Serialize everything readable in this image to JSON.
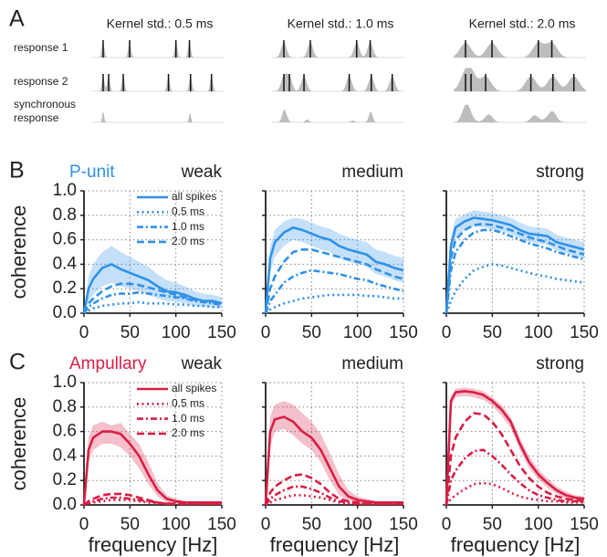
{
  "chart_data": [
    {
      "type": "raster",
      "panel_label": "A",
      "row_labels": [
        "response 1",
        "response 2",
        [
          "synchronous",
          "response"
        ]
      ],
      "xlim": [
        0,
        48
      ],
      "responses": [
        [
          4.3,
          13.9,
          30.7,
          35.6
        ],
        [
          4.3,
          6.3,
          11.6,
          28,
          36,
          43.6
        ]
      ],
      "columns": [
        {
          "title": "Kernel std.: 0.5 ms",
          "kernel_std": 0.5
        },
        {
          "title": "Kernel std.: 1.0 ms",
          "kernel_std": 1.0
        },
        {
          "title": "Kernel std.: 2.0 ms",
          "kernel_std": 2.0
        }
      ]
    },
    {
      "type": "line",
      "panel_label": "B",
      "row_title": "P-unit",
      "row_title_color": "#2f91e8",
      "title": "weak",
      "ylabel": "coherence",
      "ytick_labels": true,
      "legend": "upper right",
      "grid": true,
      "xlim": [
        0,
        150
      ],
      "ylim": [
        0,
        1
      ],
      "xticks": [
        0,
        50,
        100,
        150
      ],
      "yticks": [
        {
          "value": 0,
          "label": "0.0"
        },
        0.2,
        0.4,
        0.6,
        0.8,
        {
          "value": 1,
          "label": "1.0"
        }
      ],
      "x": [
        0,
        5,
        10,
        20,
        30,
        40,
        50,
        60,
        70,
        80,
        90,
        100,
        110,
        120,
        130,
        140,
        150
      ],
      "series": [
        {
          "name": "all spikes",
          "color": "#2f91e8",
          "dash": "solid",
          "values": [
            0,
            0.2,
            0.28,
            0.37,
            0.4,
            0.36,
            0.33,
            0.3,
            0.27,
            0.22,
            0.18,
            0.17,
            0.15,
            0.12,
            0.1,
            0.1,
            0.08
          ],
          "lower": [
            0,
            0.1,
            0.15,
            0.22,
            0.25,
            0.22,
            0.2,
            0.18,
            0.15,
            0.12,
            0.1,
            0.09,
            0.08,
            0.06,
            0.05,
            0.05,
            0.04
          ],
          "upper": [
            0,
            0.3,
            0.4,
            0.5,
            0.55,
            0.5,
            0.46,
            0.42,
            0.38,
            0.32,
            0.27,
            0.25,
            0.22,
            0.18,
            0.16,
            0.15,
            0.13
          ]
        },
        {
          "name": "0.5 ms",
          "color": "#2f91e8",
          "dash": "dotted",
          "values": [
            0,
            0.02,
            0.04,
            0.06,
            0.07,
            0.08,
            0.08,
            0.09,
            0.08,
            0.08,
            0.08,
            0.07,
            0.07,
            0.06,
            0.06,
            0.05,
            0.05
          ]
        },
        {
          "name": "1.0 ms",
          "color": "#2f91e8",
          "dash": "dashdot",
          "values": [
            0,
            0.05,
            0.08,
            0.12,
            0.15,
            0.16,
            0.16,
            0.17,
            0.16,
            0.15,
            0.14,
            0.13,
            0.12,
            0.1,
            0.09,
            0.08,
            0.07
          ]
        },
        {
          "name": "2.0 ms",
          "color": "#2f91e8",
          "dash": "dashed",
          "values": [
            0,
            0.08,
            0.12,
            0.18,
            0.22,
            0.24,
            0.24,
            0.23,
            0.21,
            0.19,
            0.17,
            0.15,
            0.13,
            0.11,
            0.1,
            0.09,
            0.08
          ]
        }
      ]
    },
    {
      "type": "line",
      "title": "medium",
      "ytick_labels": false,
      "grid": true,
      "xlim": [
        0,
        150
      ],
      "ylim": [
        0,
        1
      ],
      "xticks": [
        0,
        50,
        100,
        150
      ],
      "yticks": [
        0,
        0.2,
        0.4,
        0.6,
        0.8,
        1
      ],
      "x": [
        0,
        5,
        10,
        20,
        30,
        40,
        50,
        60,
        70,
        80,
        90,
        100,
        110,
        120,
        130,
        140,
        150
      ],
      "series": [
        {
          "color": "#2f91e8",
          "dash": "solid",
          "values": [
            0,
            0.45,
            0.58,
            0.66,
            0.7,
            0.68,
            0.65,
            0.62,
            0.6,
            0.55,
            0.52,
            0.5,
            0.48,
            0.42,
            0.4,
            0.37,
            0.35
          ],
          "lower": [
            0,
            0.33,
            0.46,
            0.55,
            0.6,
            0.58,
            0.55,
            0.52,
            0.5,
            0.45,
            0.42,
            0.4,
            0.38,
            0.32,
            0.3,
            0.27,
            0.25
          ],
          "upper": [
            0,
            0.55,
            0.68,
            0.75,
            0.78,
            0.77,
            0.74,
            0.71,
            0.69,
            0.65,
            0.62,
            0.6,
            0.58,
            0.52,
            0.5,
            0.47,
            0.45
          ]
        },
        {
          "color": "#2f91e8",
          "dash": "dotted",
          "values": [
            0,
            0.03,
            0.05,
            0.08,
            0.1,
            0.12,
            0.13,
            0.14,
            0.15,
            0.15,
            0.15,
            0.15,
            0.14,
            0.14,
            0.13,
            0.12,
            0.12
          ]
        },
        {
          "color": "#2f91e8",
          "dash": "dashdot",
          "values": [
            0,
            0.1,
            0.15,
            0.25,
            0.3,
            0.33,
            0.35,
            0.34,
            0.33,
            0.32,
            0.3,
            0.28,
            0.27,
            0.24,
            0.22,
            0.2,
            0.18
          ]
        },
        {
          "color": "#2f91e8",
          "dash": "dashed",
          "values": [
            0,
            0.2,
            0.3,
            0.42,
            0.5,
            0.52,
            0.52,
            0.5,
            0.48,
            0.46,
            0.44,
            0.42,
            0.4,
            0.36,
            0.33,
            0.3,
            0.28
          ]
        }
      ]
    },
    {
      "type": "line",
      "title": "strong",
      "ytick_labels": false,
      "grid": true,
      "xlim": [
        0,
        150
      ],
      "ylim": [
        0,
        1
      ],
      "xticks": [
        0,
        50,
        100,
        150
      ],
      "yticks": [
        0,
        0.2,
        0.4,
        0.6,
        0.8,
        1
      ],
      "x": [
        0,
        5,
        10,
        20,
        30,
        40,
        50,
        60,
        70,
        80,
        90,
        100,
        110,
        120,
        130,
        140,
        150
      ],
      "series": [
        {
          "color": "#2f91e8",
          "dash": "solid",
          "values": [
            0,
            0.55,
            0.7,
            0.75,
            0.78,
            0.77,
            0.76,
            0.74,
            0.72,
            0.68,
            0.65,
            0.64,
            0.63,
            0.58,
            0.56,
            0.54,
            0.52
          ],
          "lower": [
            0,
            0.45,
            0.62,
            0.68,
            0.71,
            0.7,
            0.69,
            0.67,
            0.65,
            0.61,
            0.58,
            0.57,
            0.56,
            0.51,
            0.49,
            0.47,
            0.45
          ],
          "upper": [
            0,
            0.62,
            0.77,
            0.81,
            0.84,
            0.83,
            0.82,
            0.8,
            0.78,
            0.74,
            0.71,
            0.7,
            0.69,
            0.64,
            0.62,
            0.6,
            0.58
          ]
        },
        {
          "color": "#2f91e8",
          "dash": "dotted",
          "values": [
            0,
            0.1,
            0.18,
            0.28,
            0.35,
            0.38,
            0.4,
            0.39,
            0.37,
            0.35,
            0.33,
            0.31,
            0.3,
            0.28,
            0.27,
            0.26,
            0.25
          ]
        },
        {
          "color": "#2f91e8",
          "dash": "dashdot",
          "values": [
            0,
            0.35,
            0.5,
            0.6,
            0.66,
            0.68,
            0.68,
            0.66,
            0.63,
            0.6,
            0.57,
            0.55,
            0.53,
            0.5,
            0.48,
            0.46,
            0.44
          ]
        },
        {
          "color": "#2f91e8",
          "dash": "dashed",
          "values": [
            0,
            0.45,
            0.6,
            0.68,
            0.72,
            0.73,
            0.72,
            0.7,
            0.68,
            0.65,
            0.62,
            0.6,
            0.58,
            0.55,
            0.52,
            0.5,
            0.48
          ]
        }
      ]
    },
    {
      "type": "line",
      "panel_label": "C",
      "row_title": "Ampullary",
      "row_title_color": "#d81e45",
      "title": "weak",
      "ylabel": "coherence",
      "xlabel": "frequency [Hz]",
      "ytick_labels": true,
      "legend": "upper right",
      "grid": true,
      "xlim": [
        0,
        150
      ],
      "ylim": [
        0,
        1
      ],
      "xticks": [
        0,
        50,
        100,
        150
      ],
      "yticks": [
        {
          "value": 0,
          "label": "0.0"
        },
        0.2,
        0.4,
        0.6,
        0.8,
        {
          "value": 1,
          "label": "1.0"
        }
      ],
      "x": [
        0,
        5,
        10,
        20,
        30,
        40,
        50,
        60,
        70,
        80,
        90,
        100,
        110,
        120,
        130,
        140,
        150
      ],
      "series": [
        {
          "name": "all spikes",
          "color": "#d81e45",
          "dash": "solid",
          "values": [
            0,
            0.45,
            0.55,
            0.6,
            0.6,
            0.58,
            0.5,
            0.4,
            0.25,
            0.12,
            0.05,
            0.03,
            0.02,
            0.02,
            0.02,
            0.02,
            0.02
          ],
          "lower": [
            0,
            0.35,
            0.45,
            0.5,
            0.5,
            0.47,
            0.4,
            0.3,
            0.17,
            0.07,
            0.02,
            0.01,
            0.01,
            0.01,
            0.01,
            0.01,
            0.01
          ],
          "upper": [
            0,
            0.55,
            0.65,
            0.68,
            0.65,
            0.67,
            0.58,
            0.5,
            0.35,
            0.18,
            0.08,
            0.05,
            0.03,
            0.03,
            0.03,
            0.03,
            0.03
          ]
        },
        {
          "name": "0.5 ms",
          "color": "#d81e45",
          "dash": "dotted",
          "values": [
            0,
            0.01,
            0.02,
            0.03,
            0.04,
            0.04,
            0.04,
            0.03,
            0.02,
            0.01,
            0.01,
            0.01,
            0.01,
            0.01,
            0.01,
            0.01,
            0.01
          ]
        },
        {
          "name": "1.0 ms",
          "color": "#d81e45",
          "dash": "dashdot",
          "values": [
            0,
            0.02,
            0.03,
            0.05,
            0.06,
            0.06,
            0.05,
            0.04,
            0.03,
            0.02,
            0.01,
            0.01,
            0.01,
            0.01,
            0.01,
            0.01,
            0.01
          ]
        },
        {
          "name": "2.0 ms",
          "color": "#d81e45",
          "dash": "dashed",
          "values": [
            0,
            0.03,
            0.05,
            0.08,
            0.09,
            0.09,
            0.08,
            0.06,
            0.04,
            0.02,
            0.01,
            0.01,
            0.01,
            0.01,
            0.01,
            0.01,
            0.01
          ]
        }
      ]
    },
    {
      "type": "line",
      "title": "medium",
      "xlabel": "frequency [Hz]",
      "ytick_labels": false,
      "grid": true,
      "xlim": [
        0,
        150
      ],
      "ylim": [
        0,
        1
      ],
      "xticks": [
        0,
        50,
        100,
        150
      ],
      "yticks": [
        0,
        0.2,
        0.4,
        0.6,
        0.8,
        1
      ],
      "x": [
        0,
        5,
        10,
        20,
        30,
        40,
        50,
        60,
        70,
        80,
        90,
        100,
        110,
        120,
        130,
        140,
        150
      ],
      "series": [
        {
          "color": "#d81e45",
          "dash": "solid",
          "values": [
            0,
            0.6,
            0.7,
            0.72,
            0.68,
            0.6,
            0.55,
            0.45,
            0.3,
            0.15,
            0.07,
            0.04,
            0.03,
            0.02,
            0.02,
            0.02,
            0.02
          ],
          "lower": [
            0,
            0.48,
            0.6,
            0.62,
            0.57,
            0.5,
            0.45,
            0.35,
            0.2,
            0.08,
            0.03,
            0.02,
            0.01,
            0.01,
            0.01,
            0.01,
            0.01
          ],
          "upper": [
            0,
            0.72,
            0.82,
            0.85,
            0.82,
            0.75,
            0.68,
            0.58,
            0.42,
            0.25,
            0.12,
            0.07,
            0.05,
            0.03,
            0.03,
            0.03,
            0.03
          ]
        },
        {
          "color": "#d81e45",
          "dash": "dotted",
          "values": [
            0,
            0.02,
            0.04,
            0.06,
            0.08,
            0.08,
            0.07,
            0.06,
            0.04,
            0.02,
            0.01,
            0.01,
            0.01,
            0.01,
            0.01,
            0.01,
            0.01
          ]
        },
        {
          "color": "#d81e45",
          "dash": "dashdot",
          "values": [
            0,
            0.05,
            0.08,
            0.12,
            0.15,
            0.15,
            0.13,
            0.1,
            0.06,
            0.03,
            0.02,
            0.01,
            0.01,
            0.01,
            0.01,
            0.01,
            0.01
          ]
        },
        {
          "color": "#d81e45",
          "dash": "dashed",
          "values": [
            0,
            0.1,
            0.15,
            0.2,
            0.24,
            0.25,
            0.22,
            0.17,
            0.1,
            0.05,
            0.03,
            0.02,
            0.01,
            0.01,
            0.01,
            0.01,
            0.01
          ]
        }
      ]
    },
    {
      "type": "line",
      "title": "strong",
      "xlabel": "frequency [Hz]",
      "ytick_labels": false,
      "grid": true,
      "xlim": [
        0,
        150
      ],
      "ylim": [
        0,
        1
      ],
      "xticks": [
        0,
        50,
        100,
        150
      ],
      "yticks": [
        0,
        0.2,
        0.4,
        0.6,
        0.8,
        1
      ],
      "x": [
        0,
        5,
        10,
        20,
        30,
        40,
        50,
        60,
        70,
        80,
        90,
        100,
        110,
        120,
        130,
        140,
        150
      ],
      "series": [
        {
          "color": "#d81e45",
          "dash": "solid",
          "values": [
            0,
            0.85,
            0.92,
            0.93,
            0.92,
            0.9,
            0.85,
            0.78,
            0.68,
            0.5,
            0.35,
            0.25,
            0.18,
            0.12,
            0.08,
            0.06,
            0.05
          ],
          "lower": [
            0,
            0.8,
            0.88,
            0.89,
            0.88,
            0.86,
            0.81,
            0.73,
            0.63,
            0.45,
            0.3,
            0.21,
            0.14,
            0.09,
            0.05,
            0.04,
            0.03
          ],
          "upper": [
            0,
            0.89,
            0.95,
            0.96,
            0.95,
            0.93,
            0.88,
            0.82,
            0.72,
            0.55,
            0.4,
            0.29,
            0.22,
            0.15,
            0.11,
            0.08,
            0.07
          ]
        },
        {
          "color": "#d81e45",
          "dash": "dotted",
          "values": [
            0,
            0.05,
            0.08,
            0.13,
            0.17,
            0.18,
            0.17,
            0.14,
            0.1,
            0.07,
            0.05,
            0.04,
            0.03,
            0.03,
            0.02,
            0.02,
            0.02
          ]
        },
        {
          "color": "#d81e45",
          "dash": "dashdot",
          "values": [
            0,
            0.2,
            0.28,
            0.38,
            0.44,
            0.45,
            0.4,
            0.33,
            0.25,
            0.18,
            0.12,
            0.08,
            0.06,
            0.04,
            0.03,
            0.03,
            0.02
          ]
        },
        {
          "color": "#d81e45",
          "dash": "dashed",
          "values": [
            0,
            0.4,
            0.55,
            0.68,
            0.75,
            0.74,
            0.68,
            0.58,
            0.45,
            0.32,
            0.22,
            0.15,
            0.1,
            0.07,
            0.05,
            0.04,
            0.03
          ]
        }
      ]
    }
  ]
}
